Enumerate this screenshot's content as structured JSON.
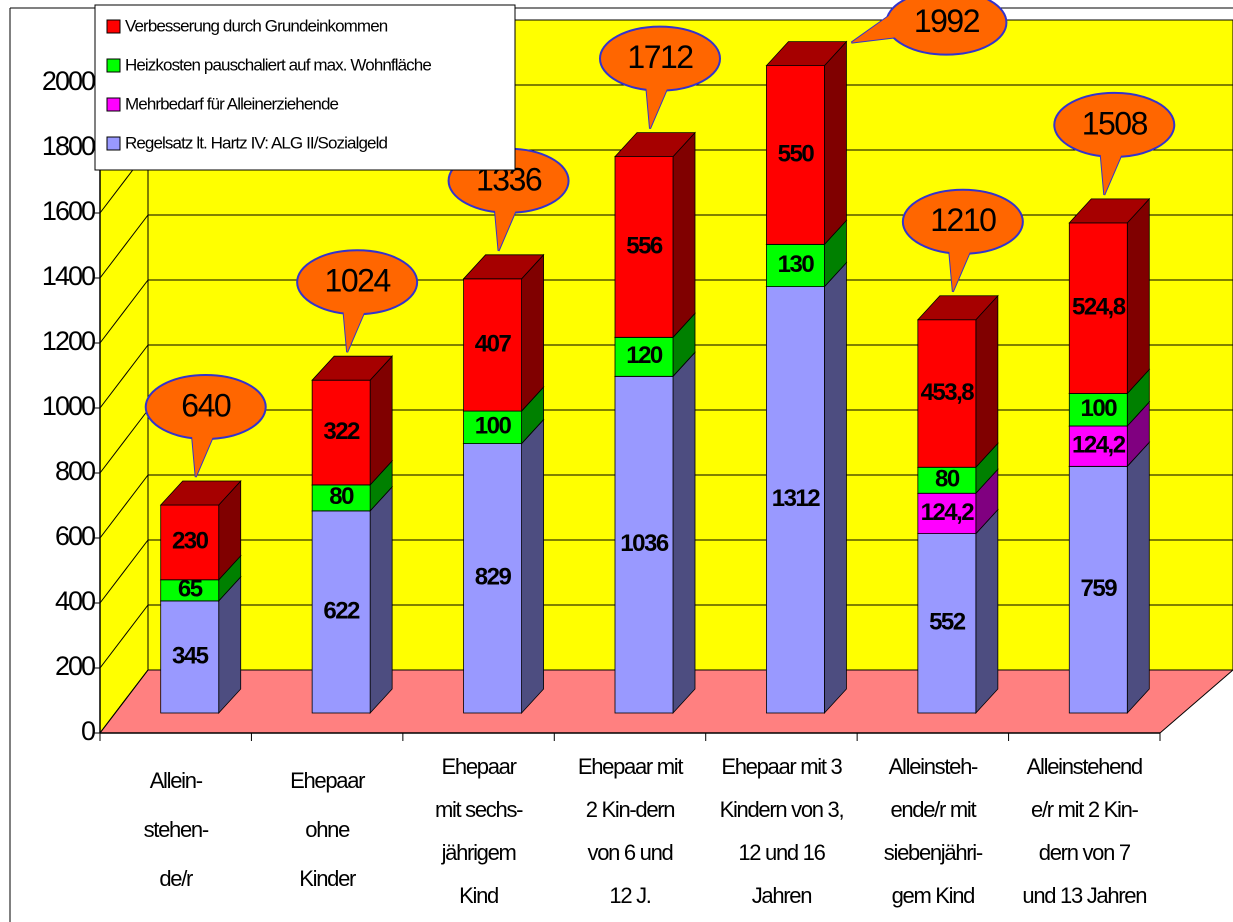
{
  "chart_data": {
    "type": "bar3d_stacked",
    "categories": [
      [
        "Allein-",
        "stehen-",
        "de/r"
      ],
      [
        "Ehepaar",
        "ohne",
        "Kinder"
      ],
      [
        "Ehepaar",
        "mit sechs-",
        "jährigem",
        "Kind"
      ],
      [
        "Ehepaar mit",
        "2 Kin-dern",
        "von 6 und",
        "12 J."
      ],
      [
        "Ehepaar mit 3",
        "Kindern von 3,",
        "12 und 16",
        "Jahren"
      ],
      [
        "Alleinsteh-",
        "ende/r mit",
        "siebenjähri-",
        "gem Kind"
      ],
      [
        "Alleinstehend",
        "e/r mit 2 Kin-",
        "dern von 7",
        "und 13 Jahren"
      ]
    ],
    "series": [
      {
        "name": "Regelsatz lt. Hartz IV: ALG II/Sozialgeld",
        "color": "#9999ff",
        "values": [
          345,
          622,
          829,
          1036,
          1312,
          552,
          759
        ]
      },
      {
        "name": "Mehrbedarf für Alleinerziehende",
        "color": "#ff00ff",
        "values": [
          null,
          null,
          null,
          null,
          null,
          124.2,
          124.2
        ],
        "value_labels": [
          null,
          null,
          null,
          null,
          null,
          "124,2",
          "124,2"
        ]
      },
      {
        "name": "Heizkosten pauschaliert auf max. Wohnfläche",
        "color": "#00ff00",
        "values": [
          65,
          80,
          100,
          120,
          130,
          80,
          100
        ]
      },
      {
        "name": "Verbesserung durch Grundeinkommen",
        "color": "#ff0000",
        "values": [
          230,
          322,
          407,
          556,
          550,
          453.8,
          524.8
        ],
        "value_labels": [
          "230",
          "322",
          "407",
          "556",
          "550",
          "453,8",
          "524,8"
        ]
      }
    ],
    "totals": [
      640,
      1024,
      1336,
      1712,
      1992,
      1210,
      1508
    ],
    "ylim": [
      0,
      2000
    ],
    "yticks": [
      0,
      200,
      400,
      600,
      800,
      1000,
      1200,
      1400,
      1600,
      1800,
      2000
    ],
    "grid": true
  }
}
